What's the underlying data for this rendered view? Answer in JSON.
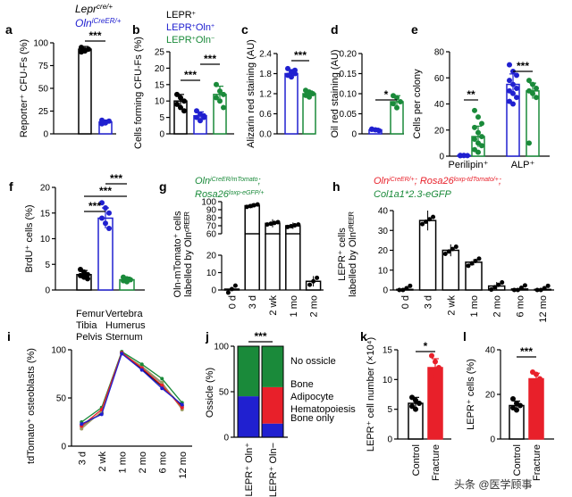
{
  "colors": {
    "black": "#000000",
    "blue": "#2020d0",
    "green": "#1a8a3a",
    "red": "#e8202a",
    "grey": "#888888",
    "olive": "#a09a60",
    "white": "#ffffff"
  },
  "watermark": {
    "prefix": "头条",
    "handle": "@医学顾事"
  },
  "chart_data": [
    {
      "id": "a",
      "type": "bar",
      "panel": "a",
      "ylabel": "Reporter⁺ CFU-Fs (%)",
      "ylim": [
        0,
        100
      ],
      "yticks": [
        "0",
        "25",
        "50",
        "75",
        "100"
      ],
      "legend": [
        {
          "text": "Lepr",
          "sup": "cre/+",
          "color": "#000000"
        },
        {
          "text": "Oln",
          "sup": "iCreER/+",
          "color": "#2020d0"
        }
      ],
      "series": [
        {
          "name": "Lepr",
          "value": 93,
          "err": 3,
          "points": [
            90,
            92,
            93,
            95,
            91
          ],
          "color": "#000000",
          "fill": "#ffffff"
        },
        {
          "name": "Oln",
          "value": 13,
          "err": 2,
          "points": [
            11,
            12,
            14,
            15,
            13
          ],
          "color": "#2020d0",
          "fill": "#ffffff"
        }
      ],
      "sig": [
        {
          "from": 0,
          "to": 1,
          "label": "***"
        }
      ]
    },
    {
      "id": "b",
      "type": "bar",
      "panel": "b",
      "ylabel": "Cells forming CFU-Fs (%)",
      "ylim": [
        0,
        25
      ],
      "yticks": [
        "0",
        "5",
        "10",
        "15",
        "20",
        "25"
      ],
      "legend": [
        {
          "text": "LEPR",
          "sup": "+",
          "color": "#000000"
        },
        {
          "text": "LEPR",
          "sup": "+",
          "text2": "Oln",
          "sup2": "+",
          "color": "#2020d0"
        },
        {
          "text": "LEPR",
          "sup": "+",
          "text2": "Oln",
          "sup2": "−",
          "color": "#1a8a3a"
        }
      ],
      "series": [
        {
          "value": 10,
          "err": 2,
          "points": [
            12,
            11,
            10,
            9,
            8,
            7
          ],
          "color": "#000000",
          "fill": "#ffffff"
        },
        {
          "value": 5.5,
          "err": 1.2,
          "points": [
            7,
            6,
            5.5,
            5,
            4,
            5
          ],
          "color": "#2020d0",
          "fill": "#ffffff"
        },
        {
          "value": 12,
          "err": 2.5,
          "points": [
            15,
            13,
            12,
            11,
            10,
            8
          ],
          "color": "#1a8a3a",
          "fill": "#ffffff"
        }
      ],
      "sig": [
        {
          "from": 0,
          "to": 1,
          "label": "***"
        },
        {
          "from": 1,
          "to": 2,
          "label": "***"
        }
      ]
    },
    {
      "id": "c",
      "type": "bar",
      "panel": "c",
      "ylabel": "Alizarin red staining (AU)",
      "ylim": [
        0,
        2.4
      ],
      "yticks": [
        "0.0",
        "0.6",
        "1.2",
        "1.8",
        "2.4"
      ],
      "series": [
        {
          "value": 1.8,
          "err": 0.12,
          "points": [
            1.95,
            1.85,
            1.8,
            1.75,
            1.7,
            1.9
          ],
          "color": "#2020d0",
          "fill": "#ffffff"
        },
        {
          "value": 1.2,
          "err": 0.08,
          "points": [
            1.3,
            1.25,
            1.2,
            1.15,
            1.1
          ],
          "color": "#1a8a3a",
          "fill": "#ffffff"
        }
      ],
      "sig": [
        {
          "from": 0,
          "to": 1,
          "label": "***"
        }
      ]
    },
    {
      "id": "d",
      "type": "bar",
      "panel": "d",
      "ylabel": "Oil red staining (AU)",
      "ylim": [
        0,
        0.2
      ],
      "yticks": [
        "0",
        "0.05",
        "0.10",
        "0.15",
        "0.20"
      ],
      "series": [
        {
          "value": 0.01,
          "err": 0.004,
          "points": [
            0.012,
            0.01,
            0.008,
            0.011
          ],
          "color": "#2020d0",
          "fill": "#ffffff"
        },
        {
          "value": 0.08,
          "err": 0.015,
          "points": [
            0.095,
            0.09,
            0.08,
            0.075,
            0.065
          ],
          "color": "#1a8a3a",
          "fill": "#ffffff"
        }
      ],
      "sig": [
        {
          "from": 0,
          "to": 1,
          "label": "*"
        }
      ]
    },
    {
      "id": "e",
      "type": "bar",
      "panel": "e",
      "ylabel": "Cells per colony",
      "ylim": [
        0,
        80
      ],
      "yticks": [
        "0",
        "20",
        "40",
        "60",
        "80"
      ],
      "categories": [
        "Perilipin⁺",
        "ALP⁺"
      ],
      "series": [
        {
          "value": 0.5,
          "err": 0.3,
          "points": [
            0.3,
            0.5,
            0.4,
            0.6,
            0.5
          ],
          "color": "#2020d0",
          "fill": "#ffffff",
          "cat": 0
        },
        {
          "value": 15,
          "err": 8,
          "points": [
            35,
            30,
            25,
            22,
            18,
            15,
            13,
            10,
            8,
            5,
            3
          ],
          "color": "#1a8a3a",
          "fill": "#ffffff",
          "cat": 0
        },
        {
          "value": 55,
          "err": 8,
          "points": [
            70,
            65,
            62,
            58,
            55,
            52,
            50,
            48,
            45,
            42,
            40
          ],
          "color": "#2020d0",
          "fill": "#ffffff",
          "cat": 1
        },
        {
          "value": 50,
          "err": 6,
          "points": [
            58,
            55,
            52,
            50,
            48,
            45,
            10
          ],
          "color": "#1a8a3a",
          "fill": "#ffffff",
          "cat": 1
        }
      ],
      "sig": [
        {
          "from": 0,
          "to": 1,
          "label": "**"
        },
        {
          "from": 2,
          "to": 3,
          "label": "***"
        }
      ]
    },
    {
      "id": "f",
      "type": "bar",
      "panel": "f",
      "ylabel": "BrdU⁺ cells (%)",
      "ylim": [
        0,
        20
      ],
      "yticks": [
        "0",
        "5",
        "10",
        "15",
        "20"
      ],
      "series": [
        {
          "value": 3,
          "err": 0.8,
          "points": [
            4,
            3.5,
            3,
            2.8,
            2.5,
            2.2
          ],
          "color": "#000000",
          "fill": "#ffffff"
        },
        {
          "value": 14,
          "err": 2,
          "points": [
            17,
            16,
            15,
            14,
            13,
            12
          ],
          "color": "#2020d0",
          "fill": "#ffffff"
        },
        {
          "value": 2,
          "err": 0.5,
          "points": [
            2.5,
            2.2,
            2,
            1.8,
            1.6
          ],
          "color": "#1a8a3a",
          "fill": "#ffffff"
        }
      ],
      "sig": [
        {
          "from": 0,
          "to": 1,
          "label": "***"
        },
        {
          "from": 1,
          "to": 2,
          "label": "***"
        },
        {
          "from": 0,
          "to": 2,
          "label": "***"
        }
      ]
    },
    {
      "id": "g",
      "type": "bar",
      "panel": "g",
      "ylabel1": "Oln-mTomato⁺ cells",
      "ylabel2": "labelled by Olnᶜᴿᴱᴱᴿ",
      "title_lines": [
        "Oln^iCreER/mTomato;",
        "Rosa26^loxp-eGFP/+"
      ],
      "title_color": "#1a8a3a",
      "categories": [
        "0 d",
        "3 d",
        "2 wk",
        "1 mo",
        "2 mo"
      ],
      "values": [
        0.5,
        95,
        73,
        70,
        5
      ],
      "errs": [
        0.3,
        3,
        5,
        4,
        3
      ],
      "broken_axis": true,
      "yticks": [
        "0",
        "10",
        "20",
        "60",
        "70",
        "80",
        "90",
        "100"
      ]
    },
    {
      "id": "h",
      "type": "bar",
      "panel": "h",
      "ylabel1": "LEPR⁺ cells",
      "ylabel2": "labelled by Olnᶜᴿᴱᴱᴿ",
      "title_lines": [
        "Oln^iCreER/+; Rosa26^loxp-tdTomato/+;",
        "Col1a1*2.3-eGFP"
      ],
      "categories": [
        "0 d",
        "3 d",
        "2 wk",
        "1 mo",
        "2 mo",
        "6 mo",
        "12 mo"
      ],
      "values": [
        0.3,
        35,
        20,
        14,
        2,
        0.5,
        0.3
      ],
      "errs": [
        0.2,
        5,
        3,
        1.5,
        2,
        0.3,
        0.2
      ],
      "ylim": [
        0,
        40
      ],
      "yticks": [
        "0",
        "10",
        "20",
        "30",
        "40"
      ]
    },
    {
      "id": "i",
      "type": "line",
      "panel": "i",
      "ylabel": "tdTomato⁺ osteoblasts (%)",
      "ylim": [
        0,
        100
      ],
      "yticks": [
        "0",
        "50",
        "100"
      ],
      "x": [
        "3 d",
        "2 wk",
        "1 mo",
        "2 mo",
        "6 mo",
        "12 mo"
      ],
      "series": [
        {
          "name": "Femur",
          "color": "#888888",
          "values": [
            20,
            35,
            97,
            82,
            65,
            40
          ]
        },
        {
          "name": "Tibia",
          "color": "#000000",
          "values": [
            22,
            34,
            97,
            80,
            62,
            42
          ]
        },
        {
          "name": "Pelvis",
          "color": "#a09a60",
          "values": [
            18,
            36,
            96,
            83,
            66,
            38
          ]
        },
        {
          "name": "Vertebra",
          "color": "#1a8a3a",
          "values": [
            25,
            40,
            98,
            85,
            70,
            45
          ]
        },
        {
          "name": "Humerus",
          "color": "#e8202a",
          "values": [
            21,
            38,
            97,
            81,
            63,
            40
          ]
        },
        {
          "name": "Sternum",
          "color": "#2020d0",
          "values": [
            23,
            33,
            96,
            79,
            60,
            43
          ]
        }
      ]
    },
    {
      "id": "j",
      "type": "bar",
      "panel": "j",
      "ylabel": "Ossicle (%)",
      "ylim": [
        0,
        100
      ],
      "yticks": [
        "0",
        "50",
        "100"
      ],
      "categories": [
        "LEPR⁺ Oln⁺",
        "LEPR⁺ Oln−"
      ],
      "stacks": [
        {
          "label": "No ossicle",
          "color": "#1a8a3a",
          "values": [
            55,
            45
          ]
        },
        {
          "label": "Bone Adipocyte Hematopoiesis",
          "color": "#e8202a",
          "values": [
            0,
            40
          ]
        },
        {
          "label": "Bone only",
          "color": "#2020d0",
          "values": [
            45,
            15
          ]
        }
      ],
      "legend": [
        {
          "text": "No ossicle",
          "color": "#1a8a3a"
        },
        {
          "text": "Bone",
          "color": "#e8202a"
        },
        {
          "text": "Adipocyte",
          "color": "#e8202a"
        },
        {
          "text": "Hematopoiesis",
          "color": "#e8202a"
        },
        {
          "text": "Bone only",
          "color": "#2020d0"
        }
      ],
      "sig": [
        {
          "from": 0,
          "to": 1,
          "label": "***"
        }
      ]
    },
    {
      "id": "k",
      "type": "bar",
      "panel": "k",
      "ylabel": "LEPR⁺ cell number (×10⁴)",
      "ylim": [
        0,
        15
      ],
      "yticks": [
        "0",
        "5",
        "10",
        "15"
      ],
      "categories": [
        "Control",
        "Fracture"
      ],
      "series": [
        {
          "value": 6,
          "err": 1,
          "points": [
            7,
            6.5,
            6,
            5.5,
            5
          ],
          "color": "#000000",
          "fill": "#ffffff"
        },
        {
          "value": 12,
          "err": 1.5,
          "points": [
            14,
            13,
            12,
            11,
            10
          ],
          "color": "#e8202a",
          "fill": "#e8202a"
        }
      ],
      "sig": [
        {
          "from": 0,
          "to": 1,
          "label": "*"
        }
      ]
    },
    {
      "id": "l",
      "type": "bar",
      "panel": "l",
      "ylabel": "LEPR⁺ cells (%)",
      "ylim": [
        0,
        40
      ],
      "yticks": [
        "0",
        "20",
        "40"
      ],
      "categories": [
        "Control",
        "Fracture"
      ],
      "series": [
        {
          "value": 15,
          "err": 2,
          "points": [
            18,
            16,
            15,
            14,
            13
          ],
          "color": "#000000",
          "fill": "#ffffff"
        },
        {
          "value": 27,
          "err": 2.5,
          "points": [
            30,
            29,
            27,
            26,
            24
          ],
          "color": "#e8202a",
          "fill": "#e8202a"
        }
      ],
      "sig": [
        {
          "from": 0,
          "to": 1,
          "label": "***"
        }
      ]
    }
  ]
}
